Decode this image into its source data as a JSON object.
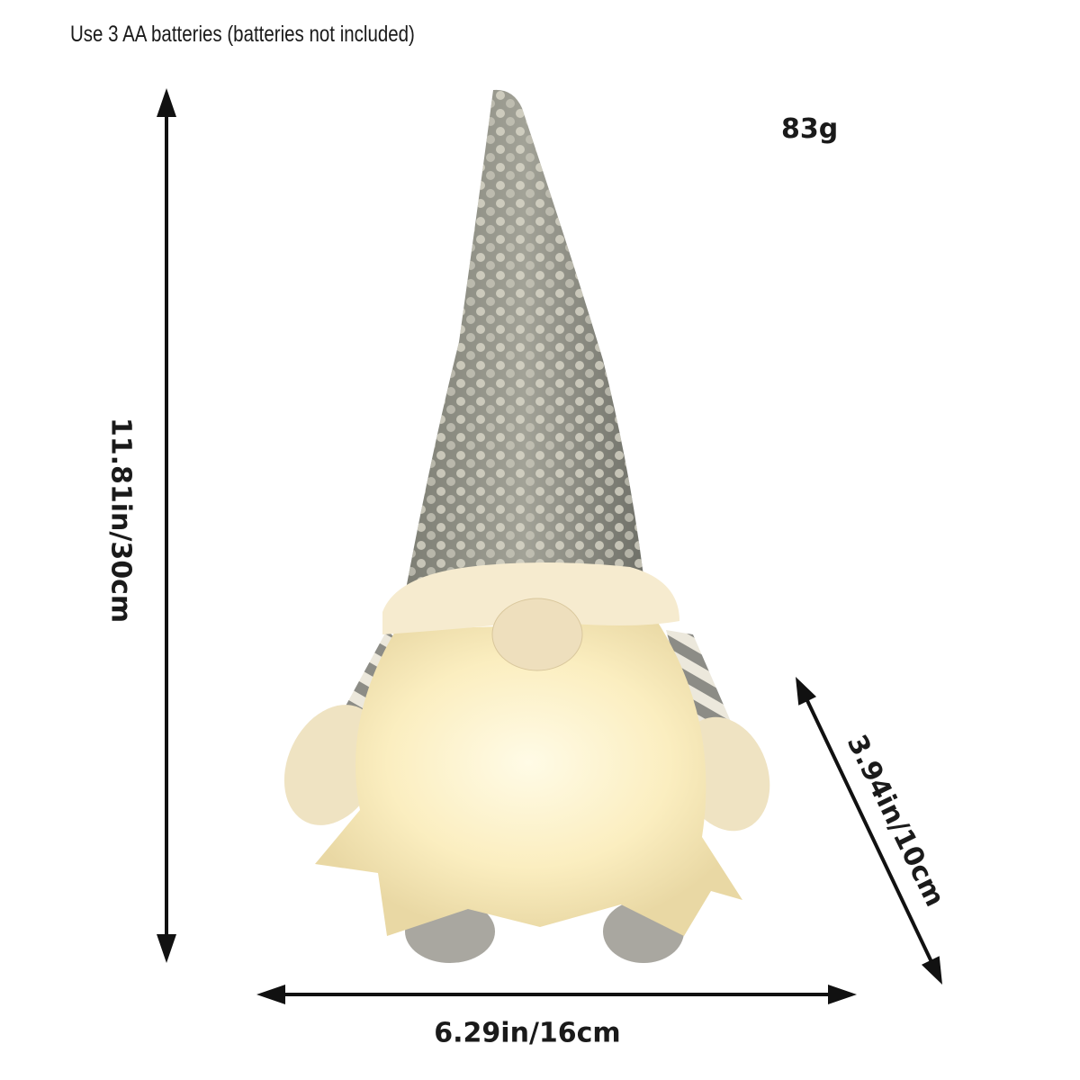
{
  "note": "Use 3 AA batteries (batteries not included)",
  "weight": "83g",
  "dimensions": {
    "height": "11.81in/30cm",
    "width": "6.29in/16cm",
    "depth": "3.94in/10cm"
  },
  "product": {
    "hat_color": "#8a8b80",
    "sequin_color": "#d8d6c8",
    "glow_color": "#fff6d0",
    "stripe_color": "#8c8c86"
  }
}
